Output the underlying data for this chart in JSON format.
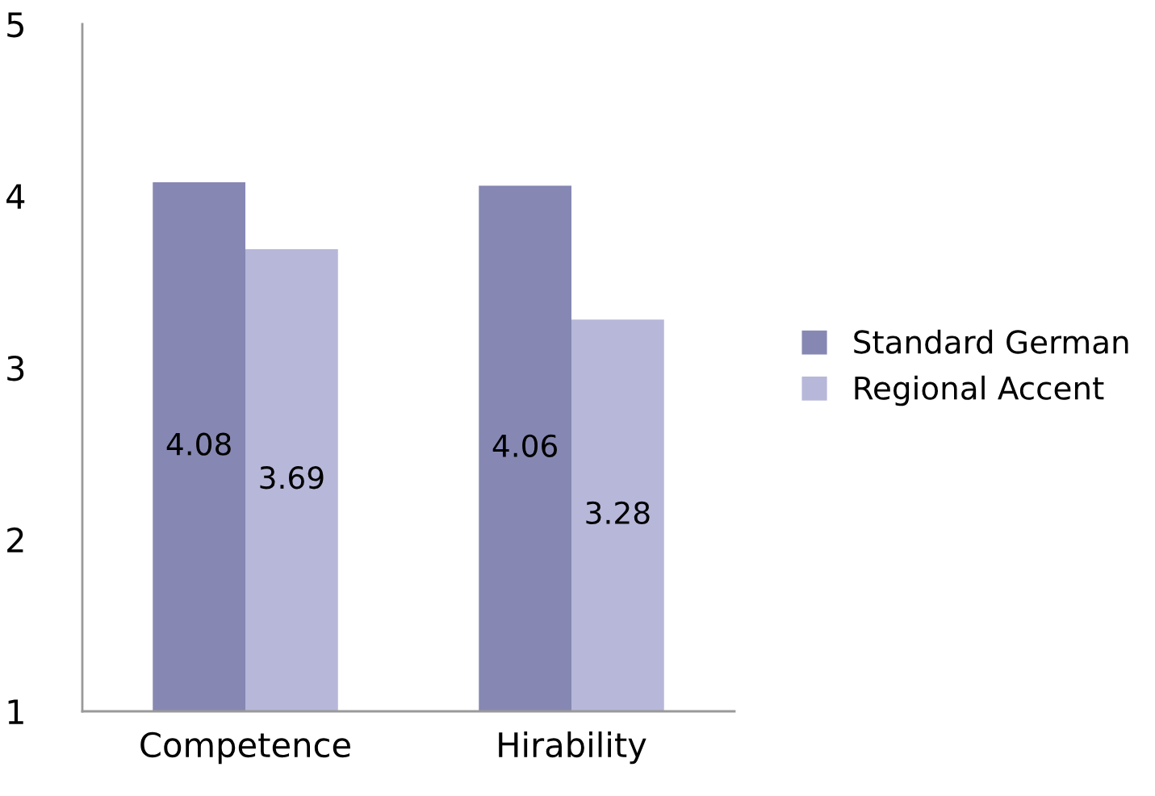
{
  "chart_data": {
    "type": "bar",
    "categories": [
      "Competence",
      "Hirability"
    ],
    "series": [
      {
        "name": "Standard German",
        "color": "#8688b3",
        "values": [
          4.08,
          4.06
        ]
      },
      {
        "name": "Regional Accent",
        "color": "#b6b7d9",
        "values": [
          3.69,
          3.28
        ]
      }
    ],
    "ylim": [
      1,
      5
    ],
    "yticks": [
      1,
      2,
      3,
      4,
      5
    ],
    "data_labels": true,
    "grid": false,
    "legend": "right"
  }
}
